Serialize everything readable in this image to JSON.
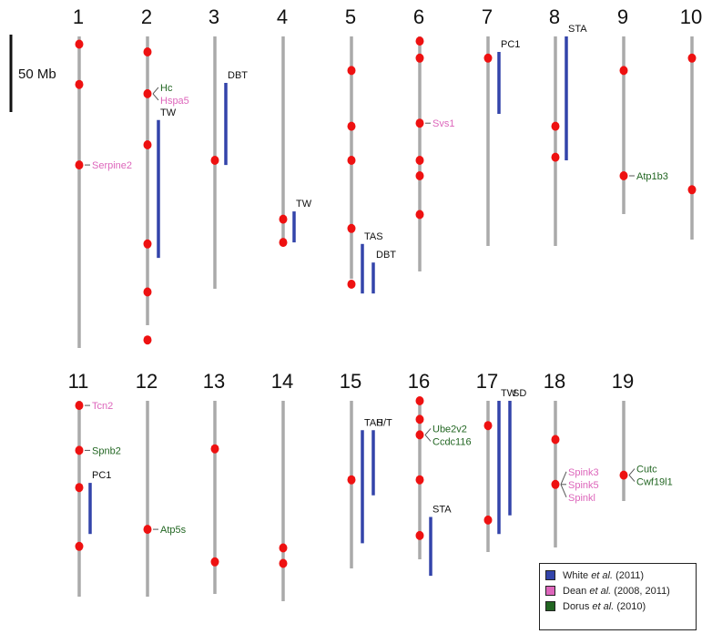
{
  "scale_bar": {
    "label": "50 Mb"
  },
  "colors": {
    "chromosome": "#aaaaaa",
    "locus": "#ee1111",
    "white": "#3344aa",
    "dean": "#dd66bb",
    "dorus": "#226622",
    "region_label": "#111111"
  },
  "chromosomes": [
    {
      "name": "1",
      "loci": [
        {
          "pos": 5,
          "label": "",
          "source": ""
        },
        {
          "pos": 31,
          "label": "",
          "source": ""
        },
        {
          "pos": 83,
          "label": "Serpine2",
          "source": "dean"
        }
      ],
      "regions": []
    },
    {
      "name": "2",
      "loci": [
        {
          "pos": 10,
          "label": "",
          "source": ""
        },
        {
          "pos": 37,
          "label": "Hc",
          "source": "dorus"
        },
        {
          "pos": 70,
          "label": "",
          "source": ""
        },
        {
          "pos": 134,
          "label": "",
          "source": ""
        },
        {
          "pos": 165,
          "label": "",
          "source": ""
        },
        {
          "pos": 196,
          "label": "",
          "source": ""
        }
      ],
      "regions": [
        {
          "label": "TW",
          "start": 54,
          "end": 143
        }
      ]
    },
    {
      "name": "3",
      "loci": [
        {
          "pos": 80,
          "label": "",
          "source": ""
        }
      ],
      "regions": [
        {
          "label": "DBT",
          "start": 30,
          "end": 83
        }
      ]
    },
    {
      "name": "4",
      "loci": [
        {
          "pos": 118,
          "label": "",
          "source": ""
        },
        {
          "pos": 133,
          "label": "",
          "source": ""
        }
      ],
      "regions": [
        {
          "label": "TW",
          "start": 113,
          "end": 133
        }
      ]
    },
    {
      "name": "5",
      "loci": [
        {
          "pos": 22,
          "label": "",
          "source": ""
        },
        {
          "pos": 58,
          "label": "",
          "source": ""
        },
        {
          "pos": 80,
          "label": "",
          "source": ""
        },
        {
          "pos": 124,
          "label": "",
          "source": ""
        },
        {
          "pos": 160,
          "label": "",
          "source": ""
        }
      ],
      "regions": [
        {
          "label": "TAS",
          "start": 134,
          "end": 166
        },
        {
          "label": "DBT",
          "start": 146,
          "end": 166
        }
      ]
    },
    {
      "name": "6",
      "loci": [
        {
          "pos": 3,
          "label": "",
          "source": ""
        },
        {
          "pos": 14,
          "label": "",
          "source": ""
        },
        {
          "pos": 56,
          "label": "Svs1",
          "source": "dean"
        },
        {
          "pos": 80,
          "label": "",
          "source": ""
        },
        {
          "pos": 90,
          "label": "",
          "source": ""
        },
        {
          "pos": 115,
          "label": "",
          "source": ""
        }
      ],
      "regions": []
    },
    {
      "name": "7",
      "loci": [
        {
          "pos": 14,
          "label": "",
          "source": ""
        }
      ],
      "regions": [
        {
          "label": "PC1",
          "start": 10,
          "end": 50
        }
      ]
    },
    {
      "name": "8",
      "loci": [
        {
          "pos": 58,
          "label": "",
          "source": ""
        },
        {
          "pos": 78,
          "label": "",
          "source": ""
        }
      ],
      "regions": [
        {
          "label": "STA",
          "start": 0,
          "end": 80
        }
      ]
    },
    {
      "name": "9",
      "loci": [
        {
          "pos": 22,
          "label": "",
          "source": ""
        },
        {
          "pos": 90,
          "label": "Atp1b3",
          "source": "dorus"
        }
      ],
      "regions": []
    },
    {
      "name": "10",
      "loci": [
        {
          "pos": 14,
          "label": "",
          "source": ""
        },
        {
          "pos": 99,
          "label": "",
          "source": ""
        }
      ],
      "regions": []
    },
    {
      "name": "11",
      "loci": [
        {
          "pos": 3,
          "label": "Tcn2",
          "source": "dean"
        },
        {
          "pos": 32,
          "label": "Spnb2",
          "source": "dorus"
        },
        {
          "pos": 56,
          "label": "",
          "source": ""
        },
        {
          "pos": 94,
          "label": "",
          "source": ""
        }
      ],
      "regions": [
        {
          "label": "PC1",
          "start": 53,
          "end": 86
        }
      ]
    },
    {
      "name": "12",
      "loci": [
        {
          "pos": 83,
          "label": "Atp5s",
          "source": "dorus"
        }
      ],
      "regions": []
    },
    {
      "name": "13",
      "loci": [
        {
          "pos": 31,
          "label": "",
          "source": ""
        },
        {
          "pos": 104,
          "label": "",
          "source": ""
        }
      ],
      "regions": []
    },
    {
      "name": "14",
      "loci": [
        {
          "pos": 95,
          "label": "",
          "source": ""
        },
        {
          "pos": 105,
          "label": "",
          "source": ""
        }
      ],
      "regions": []
    },
    {
      "name": "15",
      "loci": [
        {
          "pos": 51,
          "label": "",
          "source": ""
        }
      ],
      "regions": [
        {
          "label": "TAS",
          "start": 19,
          "end": 92
        },
        {
          "label": "H/T",
          "start": 19,
          "end": 61
        }
      ]
    },
    {
      "name": "16",
      "loci": [
        {
          "pos": 0,
          "label": "",
          "source": ""
        },
        {
          "pos": 12,
          "label": "",
          "source": ""
        },
        {
          "pos": 22,
          "label": "Ube2v2",
          "source": "dorus"
        },
        {
          "pos": 51,
          "label": "",
          "source": ""
        },
        {
          "pos": 87,
          "label": "",
          "source": ""
        }
      ],
      "regions": [
        {
          "label": "STA",
          "start": 75,
          "end": 113
        }
      ]
    },
    {
      "name": "17",
      "loci": [
        {
          "pos": 16,
          "label": "",
          "source": ""
        },
        {
          "pos": 77,
          "label": "",
          "source": ""
        }
      ],
      "regions": [
        {
          "label": "TW",
          "start": 0,
          "end": 86
        },
        {
          "label": "SD",
          "start": 0,
          "end": 74
        }
      ]
    },
    {
      "name": "18",
      "loci": [
        {
          "pos": 25,
          "label": "",
          "source": ""
        },
        {
          "pos": 54,
          "label": "Spink5",
          "source": "dean"
        }
      ],
      "regions": []
    },
    {
      "name": "19",
      "loci": [
        {
          "pos": 48,
          "label": "Cutc",
          "source": "dorus"
        }
      ],
      "regions": []
    }
  ],
  "gene_groups": [
    {
      "chromosome": "2",
      "pos": 37,
      "genes": [
        {
          "label": "Hc",
          "source": "dorus"
        },
        {
          "label": "Hspa5",
          "source": "dean"
        }
      ]
    },
    {
      "chromosome": "16",
      "pos": 22,
      "genes": [
        {
          "label": "Ube2v2",
          "source": "dorus"
        },
        {
          "label": "Ccdc116",
          "source": "dorus"
        }
      ]
    },
    {
      "chromosome": "18",
      "pos": 54,
      "genes": [
        {
          "label": "Spink3",
          "source": "dean"
        },
        {
          "label": "Spink5",
          "source": "dean"
        },
        {
          "label": "Spinkl",
          "source": "dean"
        }
      ]
    },
    {
      "chromosome": "19",
      "pos": 48,
      "genes": [
        {
          "label": "Cutc",
          "source": "dorus"
        },
        {
          "label": "Cwf19l1",
          "source": "dorus"
        }
      ]
    }
  ],
  "legend": [
    {
      "key": "white",
      "author": "White",
      "etal": "et al.",
      "year": "(2011)"
    },
    {
      "key": "dean",
      "author": "Dean",
      "etal": "et al.",
      "year": "(2008, 2011)"
    },
    {
      "key": "dorus",
      "author": "Dorus",
      "etal": "et al.",
      "year": "(2010)"
    }
  ]
}
